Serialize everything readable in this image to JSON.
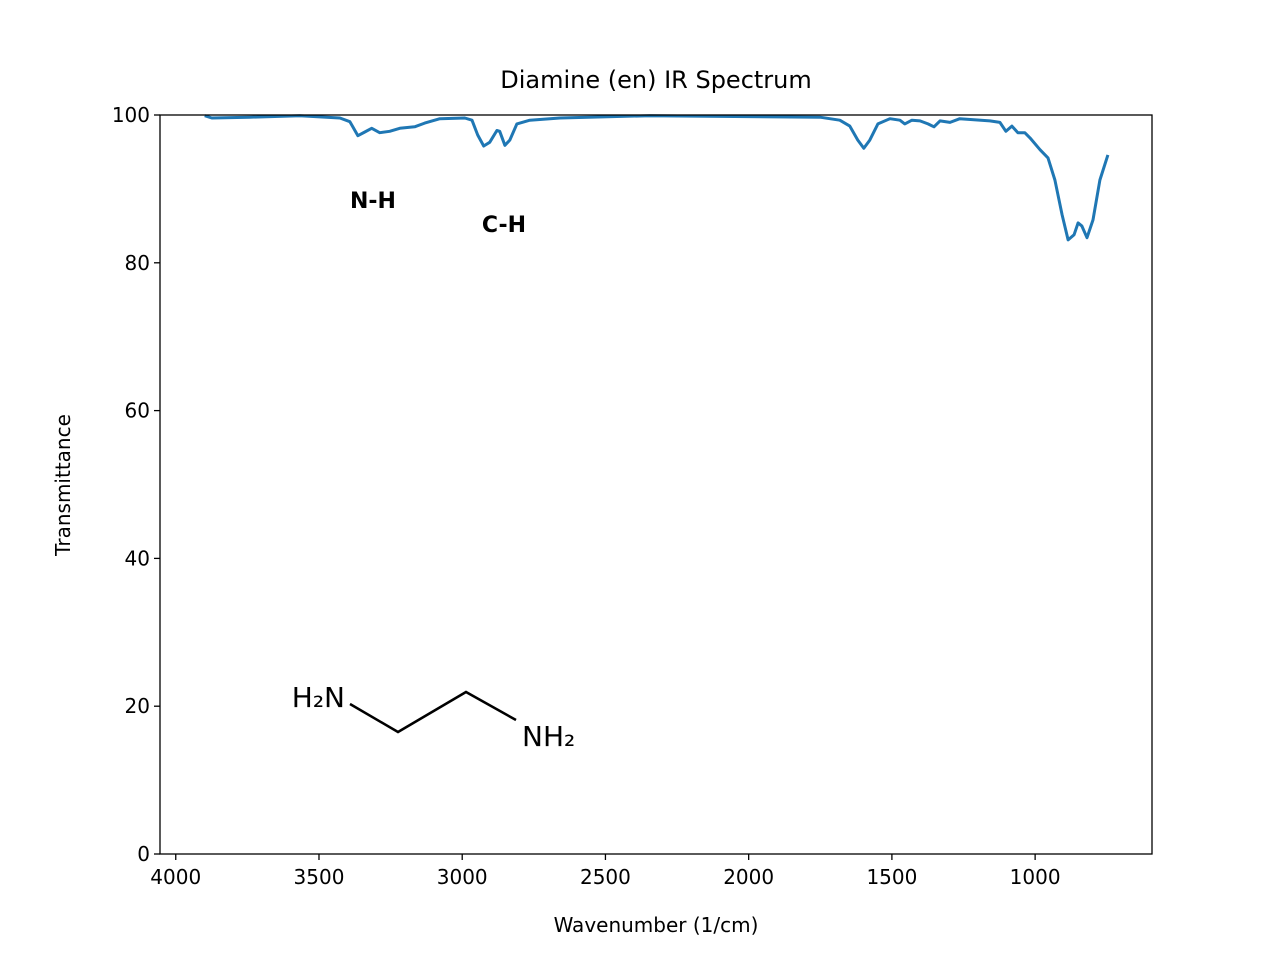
{
  "chart_data": {
    "type": "line",
    "title": "Diamine (en) IR Spectrum",
    "x_label": "Wavenumber (1/cm)",
    "y_label": "Transmittance",
    "annotations": [
      "N-H",
      "C-H"
    ],
    "structure_labels": [
      "H₂N",
      "NH₂"
    ],
    "xlim": [
      4055,
      592
    ],
    "ylim": [
      0,
      100
    ],
    "xticks": [
      4000,
      3500,
      3000,
      2500,
      2000,
      1500,
      1000
    ],
    "yticks": [
      0,
      20,
      40,
      60,
      80,
      100
    ],
    "grid": false,
    "x": [
      3899,
      3874,
      3742,
      3567,
      3427,
      3392,
      3364,
      3340,
      3316,
      3288,
      3253,
      3218,
      3166,
      3131,
      3078,
      2991,
      2966,
      2946,
      2925,
      2904,
      2879,
      2869,
      2851,
      2834,
      2809,
      2764,
      2659,
      2345,
      1751,
      1682,
      1647,
      1619,
      1598,
      1577,
      1549,
      1507,
      1472,
      1455,
      1430,
      1402,
      1374,
      1353,
      1332,
      1297,
      1263,
      1158,
      1123,
      1102,
      1081,
      1060,
      1036,
      1018,
      983,
      955,
      931,
      906,
      885,
      864,
      850,
      837,
      819,
      798,
      774,
      746
    ],
    "series": [
      {
        "color": "#1f77b4",
        "values": [
          99.9,
          99.6,
          99.7,
          99.9,
          99.6,
          99.1,
          97.2,
          97.7,
          98.2,
          97.6,
          97.8,
          98.2,
          98.4,
          98.9,
          99.5,
          99.6,
          99.3,
          97.3,
          95.8,
          96.3,
          97.9,
          97.8,
          95.9,
          96.6,
          98.8,
          99.3,
          99.6,
          99.9,
          99.7,
          99.3,
          98.5,
          96.6,
          95.5,
          96.6,
          98.8,
          99.5,
          99.3,
          98.8,
          99.3,
          99.2,
          98.8,
          98.4,
          99.2,
          99.0,
          99.5,
          99.2,
          99.0,
          97.8,
          98.5,
          97.6,
          97.6,
          96.9,
          95.3,
          94.2,
          91.2,
          86.5,
          83.1,
          83.8,
          85.4,
          85.0,
          83.4,
          85.8,
          91.2,
          94.6
        ]
      }
    ]
  }
}
